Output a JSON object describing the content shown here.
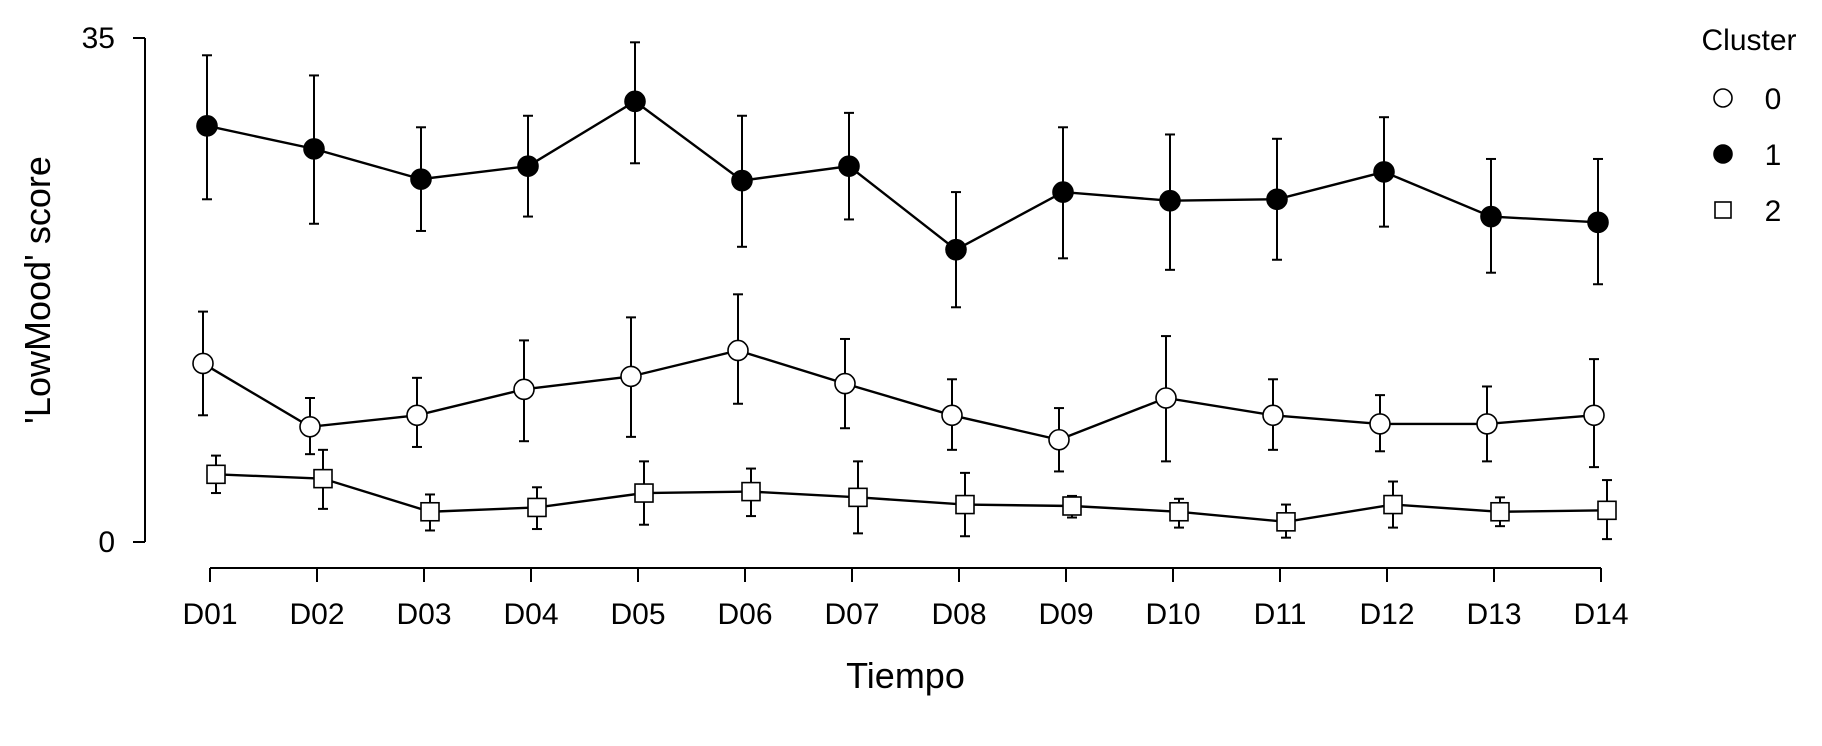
{
  "chart_data": {
    "type": "line",
    "xlabel": "Tiempo",
    "ylabel": "'LowMood' score",
    "categories": [
      "D01",
      "D02",
      "D03",
      "D04",
      "D05",
      "D06",
      "D07",
      "D08",
      "D09",
      "D10",
      "D11",
      "D12",
      "D13",
      "D14"
    ],
    "ylim": [
      0,
      35
    ],
    "yticks": [
      0,
      35
    ],
    "grid": false,
    "legend": {
      "title": "Cluster",
      "position": "top-right"
    },
    "series": [
      {
        "name": "0",
        "marker": "circle-open",
        "values": [
          12.4,
          8.0,
          8.8,
          10.6,
          11.5,
          13.3,
          11.0,
          8.8,
          7.1,
          10.0,
          8.8,
          8.2,
          8.2,
          8.8
        ],
        "lower": [
          8.8,
          6.1,
          6.6,
          7.0,
          7.3,
          9.6,
          7.9,
          6.4,
          4.9,
          5.6,
          6.4,
          6.3,
          5.6,
          5.2
        ],
        "upper": [
          16.0,
          10.0,
          11.4,
          14.0,
          15.6,
          17.2,
          14.1,
          11.3,
          9.3,
          14.3,
          11.3,
          10.2,
          10.8,
          12.7
        ]
      },
      {
        "name": "1",
        "marker": "circle-filled",
        "values": [
          28.9,
          27.3,
          25.2,
          26.1,
          30.6,
          25.1,
          26.1,
          20.3,
          24.3,
          23.7,
          23.8,
          25.7,
          22.6,
          22.2
        ],
        "lower": [
          23.8,
          22.1,
          21.6,
          22.6,
          26.3,
          20.5,
          22.4,
          16.3,
          19.7,
          18.9,
          19.6,
          21.9,
          18.7,
          17.9
        ],
        "upper": [
          33.8,
          32.4,
          28.8,
          29.6,
          34.7,
          29.6,
          29.8,
          24.3,
          28.8,
          28.3,
          28.0,
          29.5,
          26.6,
          26.6
        ]
      },
      {
        "name": "2",
        "marker": "square-open",
        "values": [
          4.7,
          4.4,
          2.1,
          2.4,
          3.4,
          3.5,
          3.1,
          2.6,
          2.5,
          2.1,
          1.4,
          2.6,
          2.1,
          2.2
        ],
        "lower": [
          3.4,
          2.3,
          0.8,
          0.9,
          1.2,
          1.8,
          0.6,
          0.4,
          1.7,
          1.0,
          0.3,
          1.0,
          1.1,
          0.2
        ],
        "upper": [
          6.0,
          6.4,
          3.3,
          3.8,
          5.6,
          5.1,
          5.6,
          4.8,
          3.2,
          3.0,
          2.6,
          4.2,
          3.1,
          4.3
        ]
      }
    ]
  }
}
